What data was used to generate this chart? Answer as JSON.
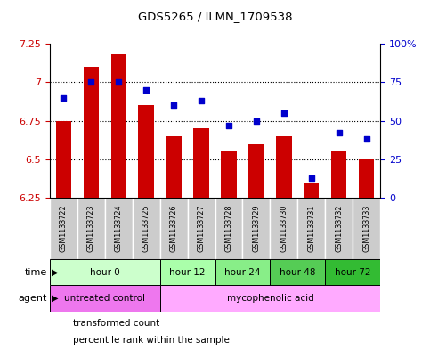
{
  "title": "GDS5265 / ILMN_1709538",
  "samples": [
    "GSM1133722",
    "GSM1133723",
    "GSM1133724",
    "GSM1133725",
    "GSM1133726",
    "GSM1133727",
    "GSM1133728",
    "GSM1133729",
    "GSM1133730",
    "GSM1133731",
    "GSM1133732",
    "GSM1133733"
  ],
  "bar_values": [
    6.75,
    7.1,
    7.18,
    6.85,
    6.65,
    6.7,
    6.55,
    6.6,
    6.65,
    6.35,
    6.55,
    6.5
  ],
  "dot_values": [
    65,
    75,
    75,
    70,
    60,
    63,
    47,
    50,
    55,
    13,
    42,
    38
  ],
  "bar_bottom": 6.25,
  "ylim": [
    6.25,
    7.25
  ],
  "y2lim": [
    0,
    100
  ],
  "yticks": [
    6.25,
    6.5,
    6.75,
    7.0,
    7.25
  ],
  "ytick_labels": [
    "6.25",
    "6.5",
    "6.75",
    "7",
    "7.25"
  ],
  "y2ticks": [
    0,
    25,
    50,
    75,
    100
  ],
  "y2ticklabels": [
    "0",
    "25",
    "50",
    "75",
    "100%"
  ],
  "bar_color": "#cc0000",
  "dot_color": "#0000cc",
  "time_groups": [
    {
      "label": "hour 0",
      "start": 0,
      "end": 4,
      "color": "#ccffcc"
    },
    {
      "label": "hour 12",
      "start": 4,
      "end": 6,
      "color": "#aaffaa"
    },
    {
      "label": "hour 24",
      "start": 6,
      "end": 8,
      "color": "#88ee88"
    },
    {
      "label": "hour 48",
      "start": 8,
      "end": 10,
      "color": "#55cc55"
    },
    {
      "label": "hour 72",
      "start": 10,
      "end": 12,
      "color": "#33bb33"
    }
  ],
  "agent_groups": [
    {
      "label": "untreated control",
      "start": 0,
      "end": 4,
      "color": "#ee77ee"
    },
    {
      "label": "mycophenolic acid",
      "start": 4,
      "end": 12,
      "color": "#ffaaff"
    }
  ],
  "legend_bar_label": "transformed count",
  "legend_dot_label": "percentile rank within the sample",
  "tick_label_color_left": "#cc0000",
  "tick_label_color_right": "#0000cc",
  "sample_box_color": "#cccccc",
  "border_color": "#888888"
}
